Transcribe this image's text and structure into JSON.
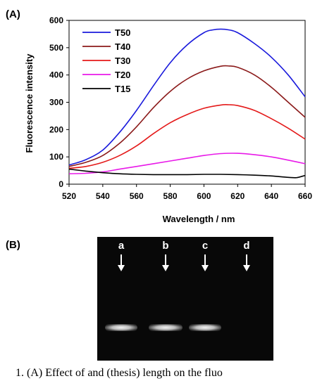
{
  "panel_a_label": "(A)",
  "panel_b_label": "(B)",
  "chart_data": {
    "type": "line",
    "title": "",
    "xlabel": "Wavelength / nm",
    "ylabel": "Fluorescence intensity",
    "xlim": [
      520,
      660
    ],
    "ylim": [
      0,
      600
    ],
    "xticks": [
      520,
      540,
      560,
      580,
      600,
      620,
      640,
      660
    ],
    "yticks": [
      0,
      100,
      200,
      300,
      400,
      500,
      600
    ],
    "grid": false,
    "legend_position": "top-left",
    "series": [
      {
        "name": "T50",
        "color": "#1a1adc",
        "x": [
          520,
          530,
          540,
          550,
          560,
          570,
          580,
          590,
          600,
          605,
          610,
          615,
          620,
          630,
          640,
          650,
          660
        ],
        "y": [
          70,
          90,
          125,
          190,
          270,
          360,
          445,
          510,
          555,
          565,
          568,
          565,
          555,
          515,
          465,
          400,
          320
        ]
      },
      {
        "name": "T40",
        "color": "#8b1a1a",
        "x": [
          520,
          530,
          540,
          550,
          560,
          570,
          580,
          590,
          600,
          610,
          615,
          620,
          630,
          640,
          650,
          660
        ],
        "y": [
          65,
          80,
          105,
          150,
          210,
          280,
          340,
          385,
          415,
          432,
          433,
          428,
          400,
          355,
          300,
          245
        ]
      },
      {
        "name": "T30",
        "color": "#e41a1a",
        "x": [
          520,
          530,
          540,
          550,
          560,
          570,
          580,
          590,
          600,
          610,
          615,
          620,
          630,
          640,
          650,
          660
        ],
        "y": [
          58,
          65,
          80,
          105,
          140,
          185,
          225,
          255,
          278,
          290,
          291,
          288,
          270,
          240,
          205,
          165
        ]
      },
      {
        "name": "T20",
        "color": "#e81ae8",
        "x": [
          520,
          530,
          540,
          550,
          560,
          570,
          580,
          590,
          600,
          610,
          620,
          630,
          640,
          650,
          660
        ],
        "y": [
          38,
          40,
          45,
          55,
          65,
          75,
          85,
          95,
          105,
          112,
          113,
          108,
          100,
          88,
          75
        ]
      },
      {
        "name": "T15",
        "color": "#000000",
        "x": [
          520,
          530,
          540,
          550,
          560,
          570,
          580,
          590,
          600,
          610,
          620,
          630,
          640,
          650,
          655,
          660
        ],
        "y": [
          55,
          48,
          42,
          38,
          36,
          35,
          35,
          35,
          36,
          36,
          35,
          33,
          30,
          25,
          24,
          32
        ]
      }
    ]
  },
  "gel": {
    "lanes": [
      {
        "label": "a",
        "band": true
      },
      {
        "label": "b",
        "band": true
      },
      {
        "label": "c",
        "band": true
      },
      {
        "label": "d",
        "band": false
      }
    ]
  },
  "caption": "1. (A) Effect of and (thesis) length on the fluo"
}
